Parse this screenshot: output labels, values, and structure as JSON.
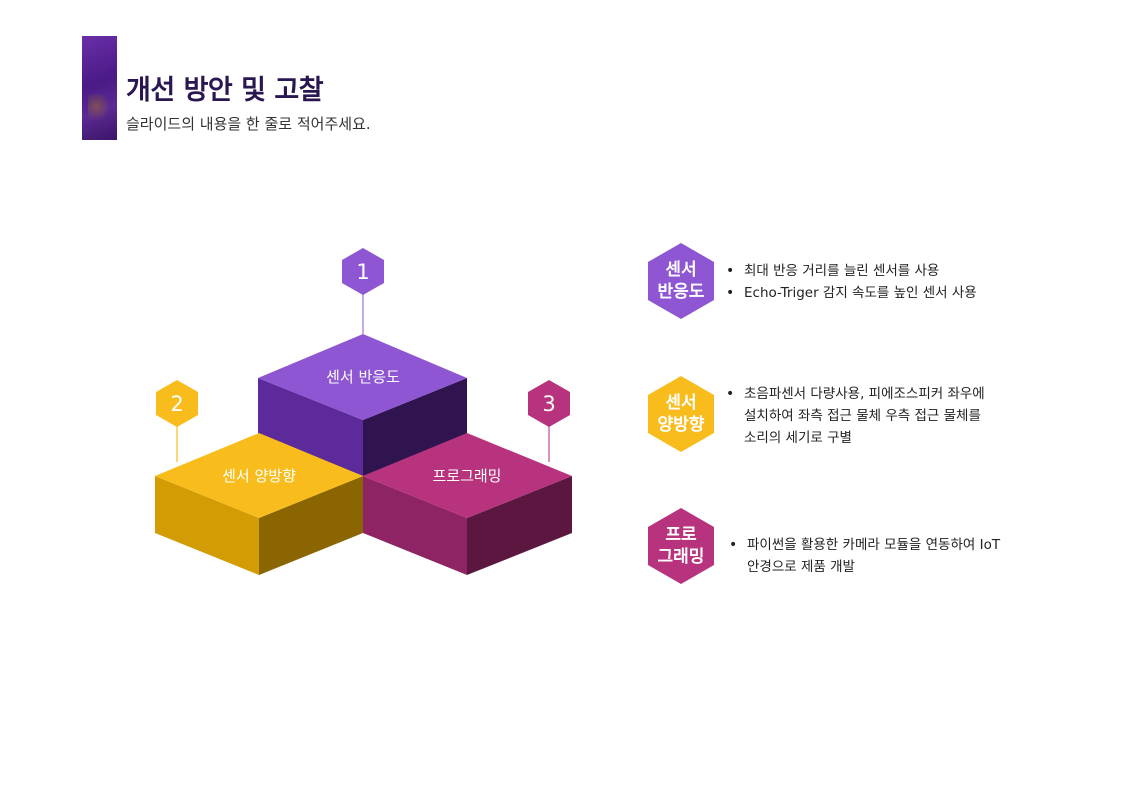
{
  "header": {
    "title": "개선 방안 및 고찰",
    "subtitle": "슬라이드의 내용을 한 줄로 적어주세요."
  },
  "colors": {
    "purple": "#8e56d2",
    "yellow": "#f8bd1c",
    "magenta": "#b8337d",
    "title": "#2a1650"
  },
  "diagram": {
    "blocks": [
      {
        "number": "1",
        "label": "센서 반응도",
        "color": "purple"
      },
      {
        "number": "2",
        "label": "센서 양방향",
        "color": "yellow"
      },
      {
        "number": "3",
        "label": "프로그래밍",
        "color": "magenta"
      }
    ]
  },
  "details": [
    {
      "hex_label": "센서\n반응도",
      "color": "purple",
      "bullets": [
        "최대 반응 거리를 늘린 센서를 사용",
        "Echo-Triger 감지 속도를 높인 센서 사용"
      ]
    },
    {
      "hex_label": "센서\n양방향",
      "color": "yellow",
      "bullets": [
        "초음파센서 다량사용, 피에조스피커 좌우에\n설치하여 좌측 접근 물체 우측 접근 물체를\n소리의 세기로 구별"
      ]
    },
    {
      "hex_label": "프로\n그래밍",
      "color": "magenta",
      "bullets": [
        "파이썬을 활용한 카메라 모듈을 연동하여 IoT\n안경으로 제품 개발"
      ]
    }
  ]
}
